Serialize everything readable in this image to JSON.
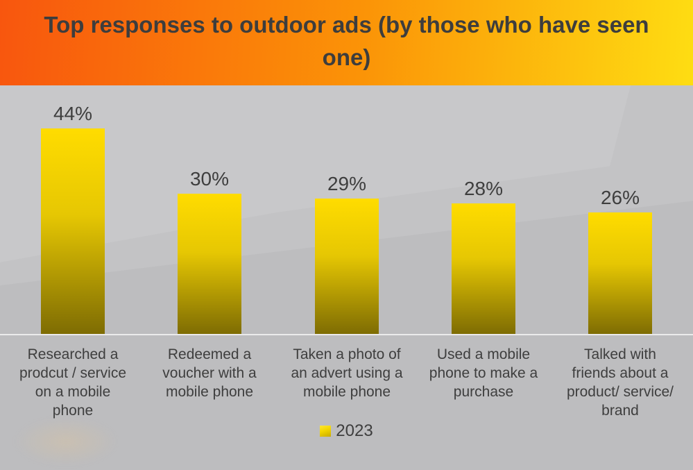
{
  "colors": {
    "header_gradient_left": "#f8560e",
    "header_gradient_mid": "#fb9307",
    "header_gradient_right": "#fedd12",
    "background": "#c3c3c5",
    "title_text": "#3d3d3d",
    "label_text": "#3e3e3e",
    "bar_gradient_top": "#ffdc00",
    "bar_gradient_bottom": "#7e6c03",
    "axis_line": "#ebebeb",
    "legend_swatch": "#f2d500"
  },
  "chart_data": {
    "type": "bar",
    "title": "Top responses to outdoor ads (by those who have seen one)",
    "categories": [
      "Researched a prodcut / service on a mobile phone",
      "Redeemed a voucher with a mobile phone",
      "Taken a photo of an advert using a mobile phone",
      "Used a mobile phone to make a purchase",
      "Talked with friends about a product/ service/ brand"
    ],
    "category_lines": [
      [
        "Researched a",
        "prodcut / service",
        "on a mobile",
        "phone"
      ],
      [
        "Redeemed a",
        "voucher with a",
        "mobile phone"
      ],
      [
        "Taken a photo of",
        "an advert using a",
        "mobile phone"
      ],
      [
        "Used a mobile",
        "phone to make a",
        "purchase"
      ],
      [
        "Talked with",
        "friends about a",
        "product/ service/",
        "brand"
      ]
    ],
    "series": [
      {
        "name": "2023",
        "values": [
          44,
          30,
          29,
          28,
          26
        ]
      }
    ],
    "value_labels": [
      "44%",
      "30%",
      "29%",
      "28%",
      "26%"
    ],
    "ylim": [
      0,
      52
    ],
    "xlabel": "",
    "ylabel": "",
    "grid": false,
    "legend_position": "bottom-center"
  },
  "legend": {
    "items": [
      {
        "label": "2023"
      }
    ]
  }
}
